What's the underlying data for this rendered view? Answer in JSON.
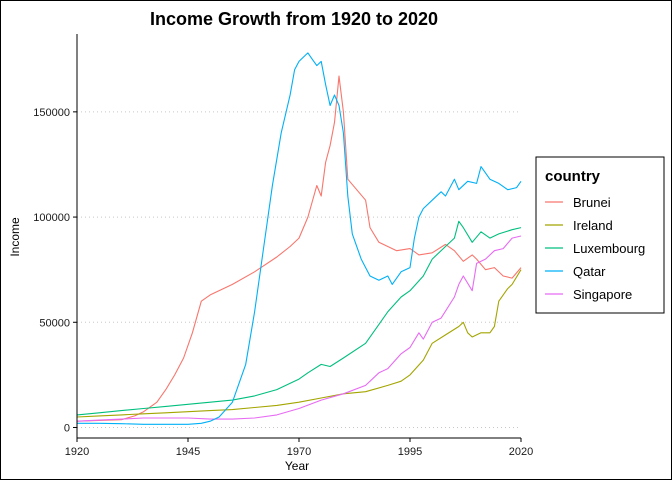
{
  "chart_data": {
    "type": "line",
    "title": "Income Growth from 1920 to 2020",
    "xlabel": "Year",
    "ylabel": "Income",
    "xlim": [
      1920,
      2020
    ],
    "ylim": [
      -5000,
      187000
    ],
    "x_ticks": [
      1920,
      1945,
      1970,
      1995,
      2020
    ],
    "x_tick_labels": [
      "1920",
      "1945",
      "1970",
      "1995",
      "2020"
    ],
    "y_ticks": [
      0,
      50000,
      100000,
      150000
    ],
    "y_tick_labels": [
      "0",
      "50000",
      "100000",
      "150000"
    ],
    "grid": "horizontal dotted",
    "legend": {
      "title": "country",
      "placement": "right"
    },
    "series": [
      {
        "name": "Brunei",
        "color": "#F8766D",
        "points": [
          [
            1920,
            3000
          ],
          [
            1925,
            3300
          ],
          [
            1930,
            3700
          ],
          [
            1933,
            5500
          ],
          [
            1935,
            7500
          ],
          [
            1938,
            12000
          ],
          [
            1940,
            18000
          ],
          [
            1942,
            25000
          ],
          [
            1944,
            33000
          ],
          [
            1946,
            45000
          ],
          [
            1948,
            60000
          ],
          [
            1950,
            63000
          ],
          [
            1955,
            68000
          ],
          [
            1960,
            74000
          ],
          [
            1965,
            81000
          ],
          [
            1968,
            86000
          ],
          [
            1970,
            90000
          ],
          [
            1972,
            100000
          ],
          [
            1974,
            115000
          ],
          [
            1975,
            110000
          ],
          [
            1976,
            126000
          ],
          [
            1977,
            134000
          ],
          [
            1978,
            145000
          ],
          [
            1979,
            167000
          ],
          [
            1980,
            150000
          ],
          [
            1981,
            118000
          ],
          [
            1983,
            113000
          ],
          [
            1985,
            108000
          ],
          [
            1986,
            95000
          ],
          [
            1988,
            88000
          ],
          [
            1990,
            86000
          ],
          [
            1992,
            84000
          ],
          [
            1995,
            85000
          ],
          [
            1997,
            82000
          ],
          [
            2000,
            83000
          ],
          [
            2003,
            87000
          ],
          [
            2005,
            84000
          ],
          [
            2007,
            79000
          ],
          [
            2009,
            82000
          ],
          [
            2010,
            80000
          ],
          [
            2012,
            75000
          ],
          [
            2014,
            76000
          ],
          [
            2016,
            72000
          ],
          [
            2018,
            71000
          ],
          [
            2020,
            76000
          ]
        ]
      },
      {
        "name": "Ireland",
        "color": "#A3A500",
        "points": [
          [
            1920,
            5000
          ],
          [
            1925,
            5500
          ],
          [
            1930,
            6000
          ],
          [
            1935,
            6500
          ],
          [
            1940,
            7000
          ],
          [
            1945,
            7500
          ],
          [
            1950,
            8000
          ],
          [
            1955,
            8500
          ],
          [
            1960,
            9500
          ],
          [
            1965,
            10500
          ],
          [
            1970,
            12000
          ],
          [
            1975,
            14000
          ],
          [
            1980,
            16000
          ],
          [
            1985,
            17000
          ],
          [
            1990,
            20000
          ],
          [
            1993,
            22000
          ],
          [
            1995,
            25000
          ],
          [
            1998,
            32000
          ],
          [
            2000,
            40000
          ],
          [
            2003,
            44000
          ],
          [
            2006,
            48000
          ],
          [
            2007,
            50000
          ],
          [
            2008,
            45000
          ],
          [
            2009,
            43000
          ],
          [
            2011,
            45000
          ],
          [
            2013,
            45000
          ],
          [
            2014,
            48000
          ],
          [
            2015,
            60000
          ],
          [
            2017,
            66000
          ],
          [
            2018,
            68000
          ],
          [
            2020,
            75000
          ]
        ]
      },
      {
        "name": "Luxembourg",
        "color": "#00BF7D",
        "points": [
          [
            1920,
            6000
          ],
          [
            1925,
            7000
          ],
          [
            1930,
            8000
          ],
          [
            1935,
            9000
          ],
          [
            1940,
            10000
          ],
          [
            1945,
            11000
          ],
          [
            1950,
            12000
          ],
          [
            1955,
            13000
          ],
          [
            1960,
            15000
          ],
          [
            1965,
            18000
          ],
          [
            1970,
            23000
          ],
          [
            1972,
            26000
          ],
          [
            1975,
            30000
          ],
          [
            1977,
            29000
          ],
          [
            1980,
            33000
          ],
          [
            1985,
            40000
          ],
          [
            1990,
            55000
          ],
          [
            1993,
            62000
          ],
          [
            1995,
            65000
          ],
          [
            1998,
            72000
          ],
          [
            2000,
            80000
          ],
          [
            2003,
            86000
          ],
          [
            2005,
            90000
          ],
          [
            2006,
            98000
          ],
          [
            2007,
            95000
          ],
          [
            2009,
            88000
          ],
          [
            2011,
            93000
          ],
          [
            2013,
            90000
          ],
          [
            2015,
            92000
          ],
          [
            2018,
            94000
          ],
          [
            2020,
            95000
          ]
        ]
      },
      {
        "name": "Qatar",
        "color": "#00B0F6",
        "points": [
          [
            1920,
            2000
          ],
          [
            1925,
            2000
          ],
          [
            1930,
            1800
          ],
          [
            1935,
            1500
          ],
          [
            1940,
            1500
          ],
          [
            1945,
            1500
          ],
          [
            1948,
            2000
          ],
          [
            1950,
            3000
          ],
          [
            1952,
            5000
          ],
          [
            1955,
            12000
          ],
          [
            1958,
            30000
          ],
          [
            1960,
            55000
          ],
          [
            1962,
            85000
          ],
          [
            1964,
            115000
          ],
          [
            1966,
            140000
          ],
          [
            1968,
            158000
          ],
          [
            1969,
            170000
          ],
          [
            1970,
            174000
          ],
          [
            1971,
            176000
          ],
          [
            1972,
            178000
          ],
          [
            1973,
            175000
          ],
          [
            1974,
            172000
          ],
          [
            1975,
            174000
          ],
          [
            1976,
            163000
          ],
          [
            1977,
            153000
          ],
          [
            1978,
            158000
          ],
          [
            1979,
            153000
          ],
          [
            1980,
            140000
          ],
          [
            1981,
            110000
          ],
          [
            1982,
            92000
          ],
          [
            1984,
            80000
          ],
          [
            1986,
            72000
          ],
          [
            1988,
            70000
          ],
          [
            1990,
            72000
          ],
          [
            1991,
            68000
          ],
          [
            1993,
            74000
          ],
          [
            1995,
            76000
          ],
          [
            1996,
            90000
          ],
          [
            1997,
            100000
          ],
          [
            1998,
            104000
          ],
          [
            2000,
            108000
          ],
          [
            2002,
            112000
          ],
          [
            2003,
            110000
          ],
          [
            2005,
            118000
          ],
          [
            2006,
            113000
          ],
          [
            2008,
            117000
          ],
          [
            2010,
            116000
          ],
          [
            2011,
            124000
          ],
          [
            2013,
            118000
          ],
          [
            2015,
            116000
          ],
          [
            2017,
            113000
          ],
          [
            2019,
            114000
          ],
          [
            2020,
            117000
          ]
        ]
      },
      {
        "name": "Singapore",
        "color": "#E76BF3",
        "points": [
          [
            1920,
            3000
          ],
          [
            1925,
            3500
          ],
          [
            1930,
            4000
          ],
          [
            1935,
            4500
          ],
          [
            1940,
            4500
          ],
          [
            1945,
            4500
          ],
          [
            1950,
            4000
          ],
          [
            1955,
            4000
          ],
          [
            1960,
            4500
          ],
          [
            1965,
            6000
          ],
          [
            1970,
            9000
          ],
          [
            1975,
            13000
          ],
          [
            1980,
            16000
          ],
          [
            1985,
            20000
          ],
          [
            1988,
            26000
          ],
          [
            1990,
            28000
          ],
          [
            1993,
            35000
          ],
          [
            1995,
            38000
          ],
          [
            1997,
            45000
          ],
          [
            1998,
            42000
          ],
          [
            2000,
            50000
          ],
          [
            2002,
            52000
          ],
          [
            2005,
            62000
          ],
          [
            2006,
            68000
          ],
          [
            2007,
            72000
          ],
          [
            2009,
            65000
          ],
          [
            2010,
            78000
          ],
          [
            2012,
            80000
          ],
          [
            2014,
            84000
          ],
          [
            2016,
            85000
          ],
          [
            2018,
            90000
          ],
          [
            2020,
            91000
          ]
        ]
      }
    ]
  }
}
